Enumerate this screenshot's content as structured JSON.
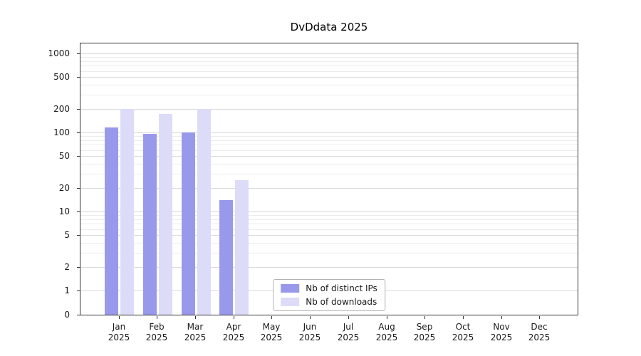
{
  "chart_data": {
    "type": "bar",
    "title": "DvDdata 2025",
    "categories": [
      "Jan",
      "Feb",
      "Mar",
      "Apr",
      "May",
      "Jun",
      "Jul",
      "Aug",
      "Sep",
      "Oct",
      "Nov",
      "Dec"
    ],
    "category_year": "2025",
    "series": [
      {
        "name": "Nb of distinct IPs",
        "color": "#9999ec",
        "values": [
          115,
          95,
          100,
          14,
          0,
          0,
          0,
          0,
          0,
          0,
          0,
          0
        ]
      },
      {
        "name": "Nb of downloads",
        "color": "#dcdcf9",
        "values": [
          200,
          170,
          200,
          25,
          0,
          0,
          0,
          0,
          0,
          0,
          0,
          0
        ]
      }
    ],
    "yscale": "symlog",
    "ytick_labels": [
      0,
      1,
      2,
      5,
      10,
      20,
      50,
      100,
      200,
      500,
      1000
    ],
    "minor_gridlines": [
      3,
      4,
      6,
      7,
      8,
      9,
      30,
      40,
      60,
      70,
      80,
      90,
      300,
      400,
      600,
      700,
      800,
      900
    ],
    "ylim": [
      0,
      1300
    ],
    "grid": true,
    "legend_position": "lower-center"
  }
}
